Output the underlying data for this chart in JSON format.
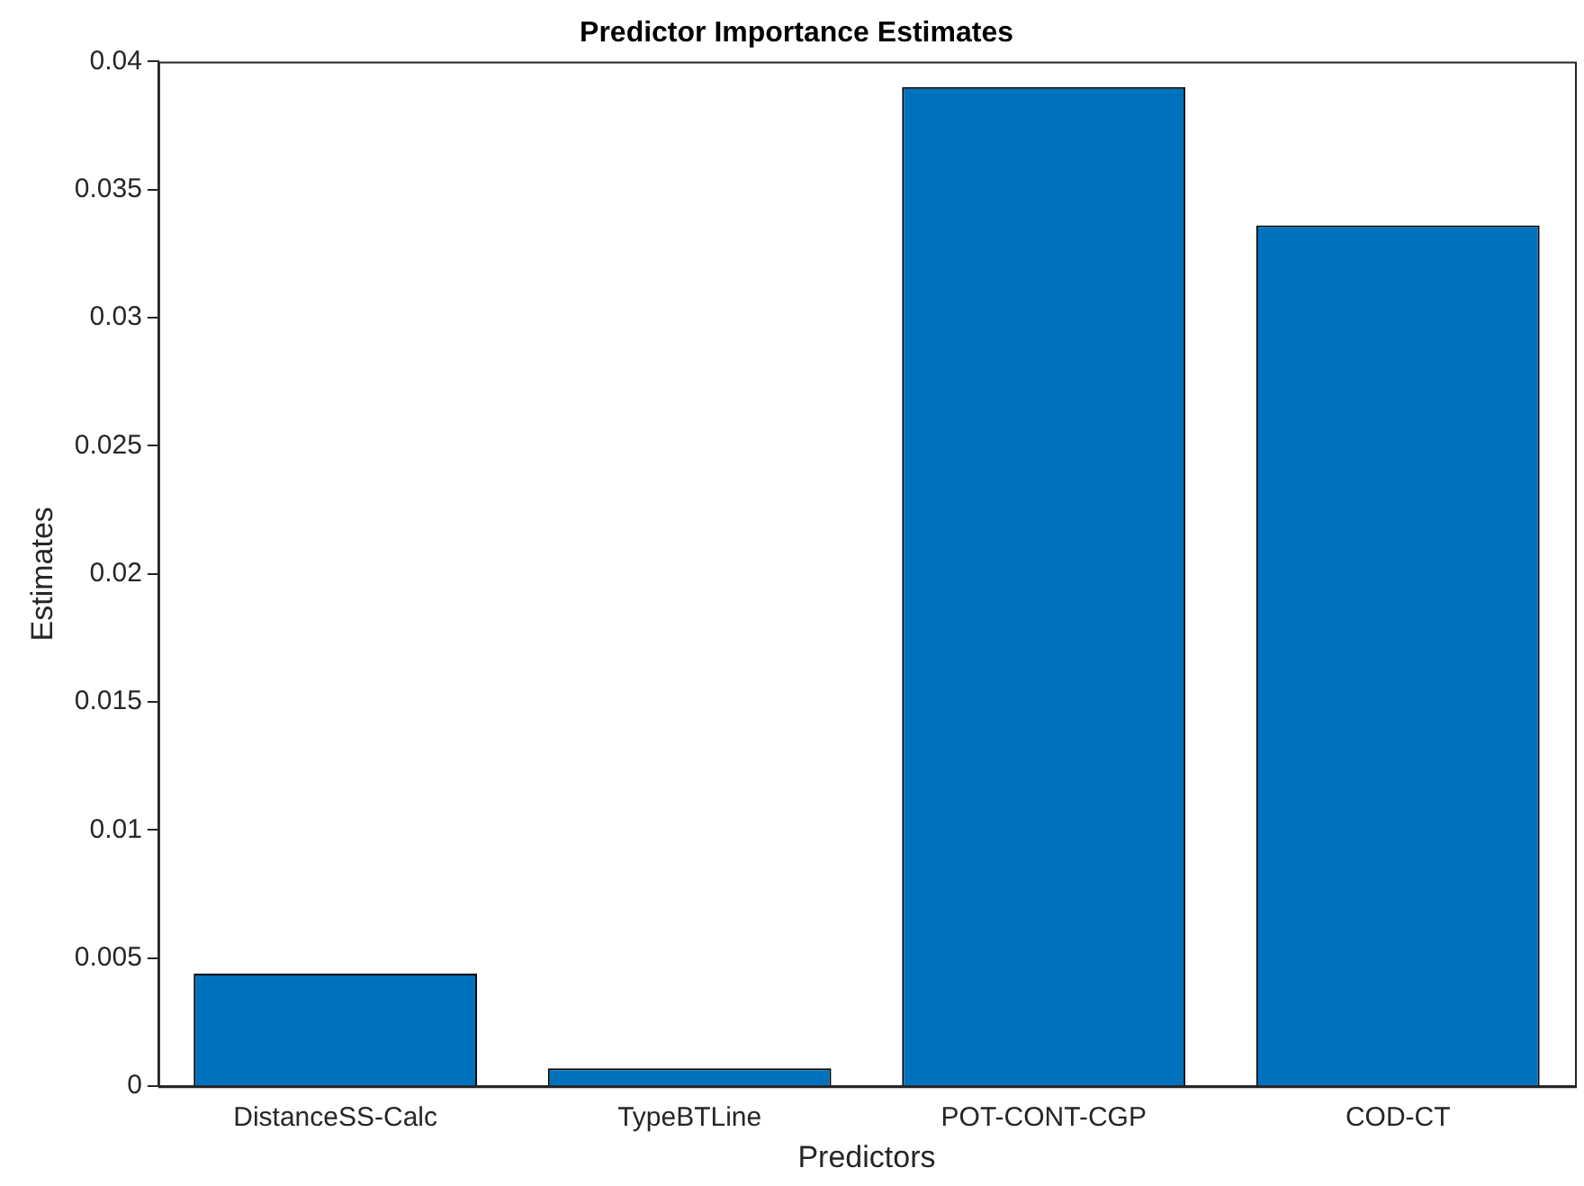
{
  "chart_data": {
    "type": "bar",
    "title": "Predictor Importance Estimates",
    "xlabel": "Predictors",
    "ylabel": "Estimates",
    "categories": [
      "DistanceSS-Calc",
      "TypeBTLine",
      "POT-CONT-CGP",
      "COD-CT"
    ],
    "values": [
      0.0044,
      0.0007,
      0.039,
      0.0336
    ],
    "color": "#0072bd",
    "ylim": [
      0,
      0.04
    ],
    "yticks": [
      0,
      0.005,
      0.01,
      0.015,
      0.02,
      0.025,
      0.03,
      0.035,
      0.04
    ],
    "grid": false,
    "legend": false
  }
}
